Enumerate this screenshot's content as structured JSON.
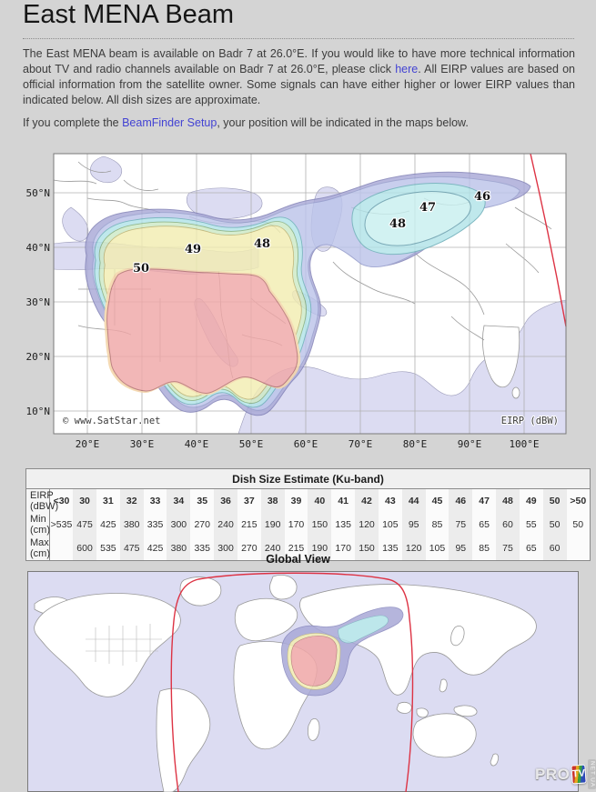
{
  "page": {
    "title": "East MENA Beam",
    "background": "#d4d4d4"
  },
  "intro": {
    "p1_before": "The East MENA beam is available on Badr 7 at 26.0°E. If you would like to have more technical information about TV and radio channels available on Badr 7 at 26.0°E, please click ",
    "p1_link": "here",
    "p1_after": ". All EIRP values are based on official information from the satellite owner. Some signals can have either higher or lower EIRP values than indicated below. All dish sizes are approximate.",
    "p2_before": "If you complete the ",
    "p2_link": "BeamFinder Setup",
    "p2_after": ", your position will be indicated in the maps below."
  },
  "beam_map": {
    "lat_labels": [
      "50°N",
      "40°N",
      "30°N",
      "20°N",
      "10°N"
    ],
    "lon_labels": [
      "20°E",
      "30°E",
      "40°E",
      "50°E",
      "60°E",
      "70°E",
      "80°E",
      "90°E",
      "100°E"
    ],
    "copyright": "© www.SatStar.net",
    "unit_label": "EIRP (dBW)",
    "contour_labels": [
      "50",
      "49",
      "48",
      "48",
      "47",
      "46"
    ],
    "colors": {
      "ocean": "#dcdcf2",
      "land": "#ffffff",
      "band_45": "#a9a9d7",
      "band_46": "#bcc4ea",
      "band_47": "#b2e3e8",
      "band_48_east": "#c9f0f0",
      "band_48": "#cdeac6",
      "band_49": "#f2edb2",
      "band_49_50": "#f3d3a4",
      "band_50": "#f0a8a8",
      "visibility_circle": "#dd3344"
    }
  },
  "dish_table": {
    "title": "Dish Size Estimate (Ku-band)",
    "row_headers": [
      "EIRP (dBW)",
      "Min (cm)",
      "Max (cm)"
    ],
    "eirp": [
      "<30",
      "30",
      "31",
      "32",
      "33",
      "34",
      "35",
      "36",
      "37",
      "38",
      "39",
      "40",
      "41",
      "42",
      "43",
      "44",
      "45",
      "46",
      "47",
      "48",
      "49",
      "50",
      ">50"
    ],
    "min_cm": [
      ">535",
      "475",
      "425",
      "380",
      "335",
      "300",
      "270",
      "240",
      "215",
      "190",
      "170",
      "150",
      "135",
      "120",
      "105",
      "95",
      "85",
      "75",
      "65",
      "60",
      "55",
      "50",
      "50"
    ],
    "max_cm": [
      "",
      "600",
      "535",
      "475",
      "425",
      "380",
      "335",
      "300",
      "270",
      "240",
      "215",
      "190",
      "170",
      "150",
      "135",
      "120",
      "105",
      "95",
      "85",
      "75",
      "65",
      "60",
      ""
    ]
  },
  "global_view": {
    "title": "Global View"
  },
  "watermark": {
    "pro": "PRO",
    "tv": "TV",
    "net": "NET.UA"
  }
}
